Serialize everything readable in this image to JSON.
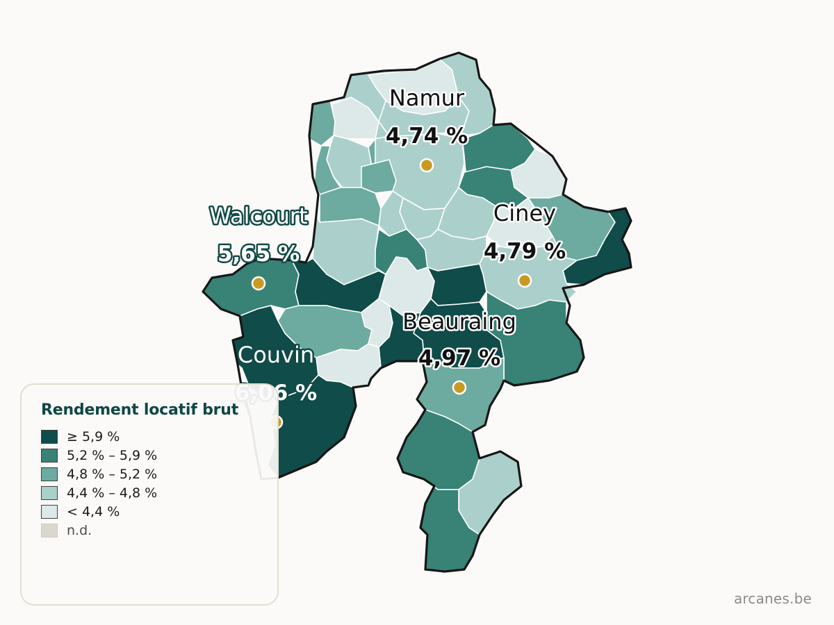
{
  "legend": {
    "title": "Rendement locatif brut",
    "classes": [
      {
        "label": "≥ 5,9 %",
        "color": "#0f4c4a"
      },
      {
        "label": "5,2 % – 5,9 %",
        "color": "#388276"
      },
      {
        "label": "4,8 % – 5,2 %",
        "color": "#6daa9f"
      },
      {
        "label": "4,4 % – 4,8 %",
        "color": "#abd0cb"
      },
      {
        "label": "< 4,4 %",
        "color": "#dce9e8"
      },
      {
        "label": "n.d.",
        "color": "#dbd7cd"
      }
    ]
  },
  "cities": [
    {
      "name": "Namur",
      "value": "4,74 %",
      "style": "dark"
    },
    {
      "name": "Ciney",
      "value": "4,79 %",
      "style": "dark"
    },
    {
      "name": "Walcourt",
      "value": "5,65 %",
      "style": "teal"
    },
    {
      "name": "Beauraing",
      "value": "4,97 %",
      "style": "dark"
    },
    {
      "name": "Couvin",
      "value": "6,06 %",
      "style": "teal"
    }
  ],
  "watermark": "arcanes.be"
}
